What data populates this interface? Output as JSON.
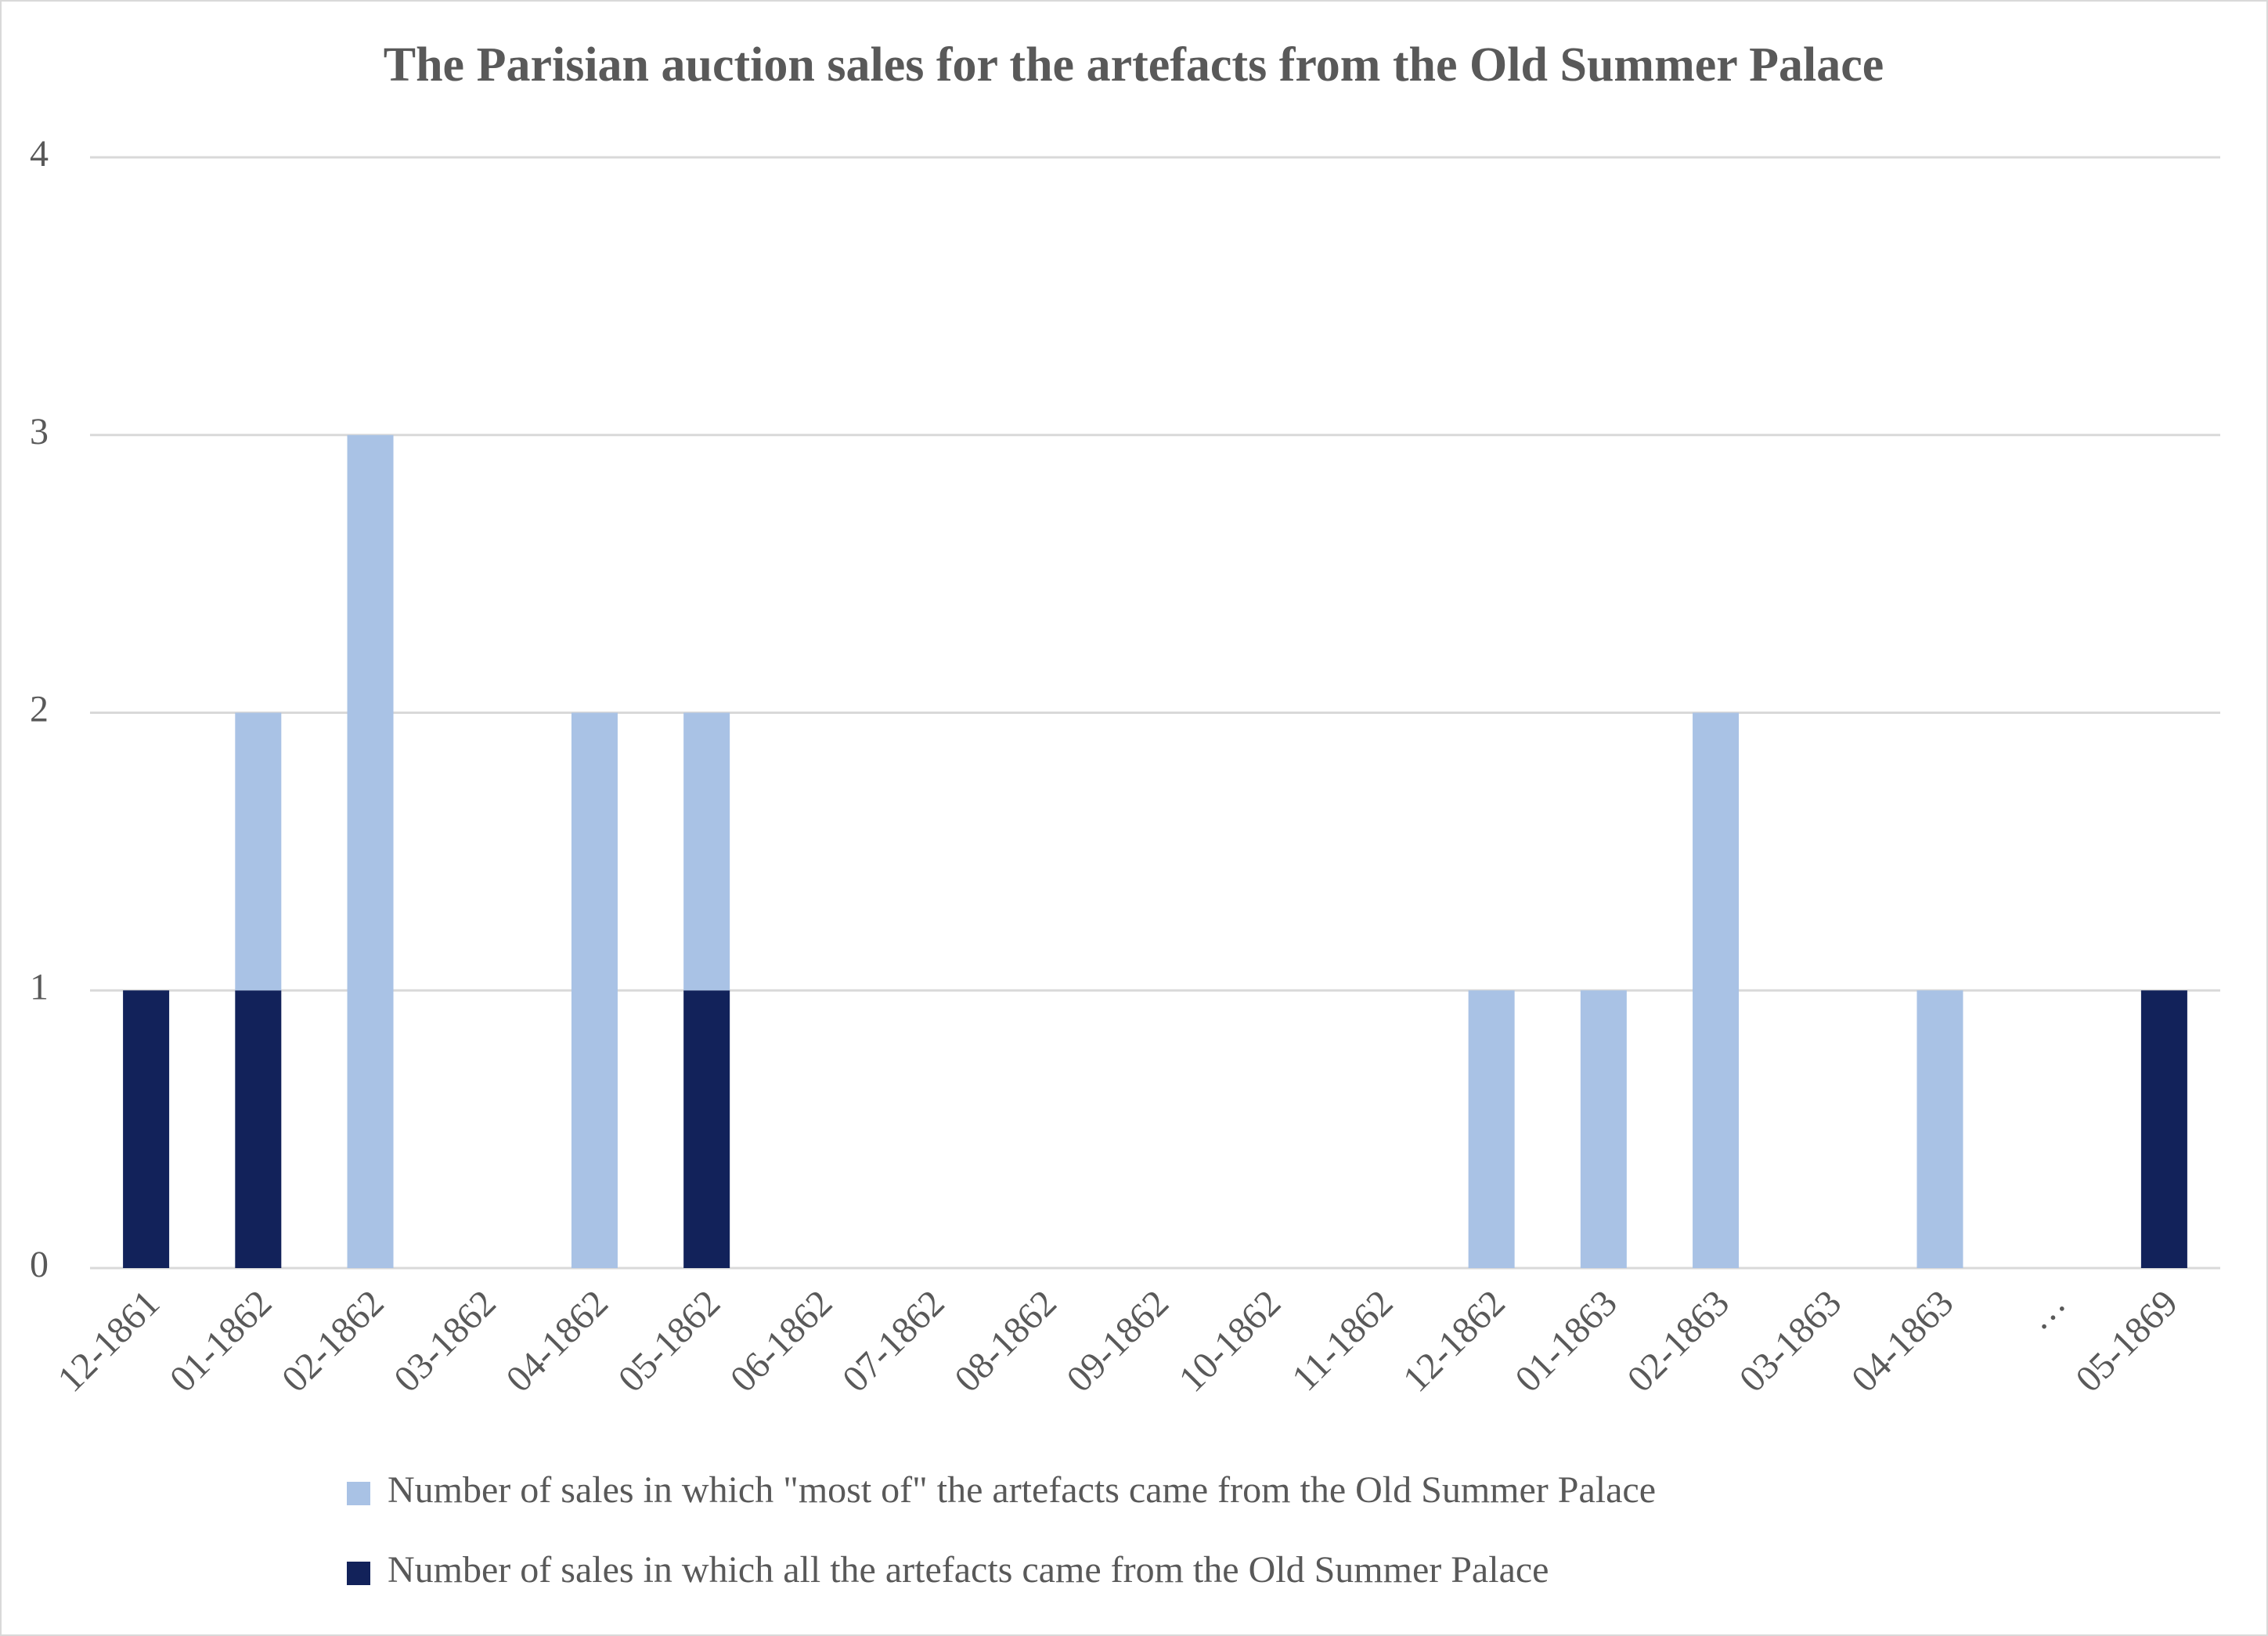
{
  "chart_data": {
    "type": "stacked_bar",
    "title": "The Parisian auction sales for the artefacts from the Old Summer Palace",
    "categories": [
      "12-1861",
      "01-1862",
      "02-1862",
      "03-1862",
      "04-1862",
      "05-1862",
      "06-1862",
      "07-1862",
      "08-1862",
      "09-1862",
      "10-1862",
      "11-1862",
      "12-1862",
      "01-1863",
      "02-1863",
      "03-1863",
      "04-1863",
      "…",
      "05-1869"
    ],
    "series": [
      {
        "name": "Number of sales in which all the artefacts came from the Old Summer Palace",
        "color": "#12225a",
        "values": [
          1,
          1,
          0,
          0,
          0,
          1,
          0,
          0,
          0,
          0,
          0,
          0,
          0,
          0,
          0,
          0,
          0,
          0,
          1
        ]
      },
      {
        "name": "Number of sales in which \"most of\" the artefacts came from the Old Summer Palace",
        "color": "#a9c2e5",
        "values": [
          0,
          1,
          3,
          0,
          2,
          1,
          0,
          0,
          0,
          0,
          0,
          0,
          1,
          1,
          2,
          0,
          1,
          0,
          0
        ]
      }
    ],
    "ylim": [
      0,
      4
    ],
    "yticks": [
      0,
      1,
      2,
      3,
      4
    ],
    "grid": true,
    "legend": "bottom"
  }
}
